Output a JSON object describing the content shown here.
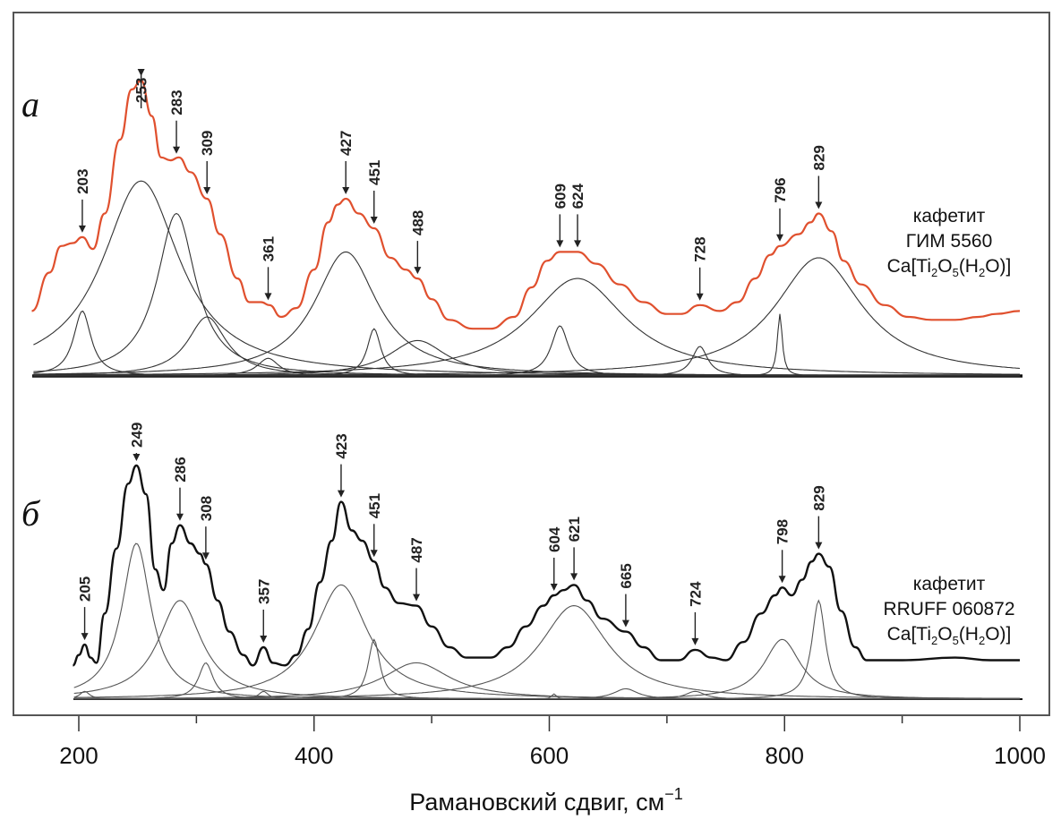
{
  "chart_data": {
    "type": "line",
    "title": "",
    "xlabel": "Рамановский сдвиг, см",
    "xlabel_superscript": "−1",
    "ylabel": "",
    "xlim": [
      160,
      1000
    ],
    "xticks": [
      200,
      400,
      600,
      800,
      1000
    ],
    "xtick_labels": [
      "200",
      "400",
      "600",
      "800",
      "1000"
    ],
    "minor_xticks": [
      300,
      500,
      700,
      900
    ],
    "grid": false,
    "panels": [
      {
        "id": "a",
        "letter": "а",
        "sample_lines": [
          "кафетит",
          "ГИМ 5560"
        ],
        "formula": {
          "pre": "Ca",
          "parts": [
            [
              "[Ti",
              "2",
              "O",
              "5",
              "(H",
              "2",
              "O)]"
            ]
          ]
        },
        "formula_text": "Ca[Ti2O5(H2O)]",
        "spectrum_color": "#e0502e",
        "component_color": "#333333",
        "peak_labels": [
          203,
          253,
          283,
          309,
          361,
          427,
          451,
          488,
          609,
          624,
          728,
          796,
          829
        ],
        "components": [
          {
            "center": 203,
            "height": 0.22,
            "fwhm": 18
          },
          {
            "center": 253,
            "height": 0.66,
            "fwhm": 80
          },
          {
            "center": 283,
            "height": 0.55,
            "fwhm": 40
          },
          {
            "center": 309,
            "height": 0.2,
            "fwhm": 40
          },
          {
            "center": 361,
            "height": 0.06,
            "fwhm": 22
          },
          {
            "center": 427,
            "height": 0.42,
            "fwhm": 65
          },
          {
            "center": 451,
            "height": 0.16,
            "fwhm": 14
          },
          {
            "center": 488,
            "height": 0.12,
            "fwhm": 60
          },
          {
            "center": 609,
            "height": 0.17,
            "fwhm": 18
          },
          {
            "center": 624,
            "height": 0.33,
            "fwhm": 100
          },
          {
            "center": 728,
            "height": 0.1,
            "fwhm": 16
          },
          {
            "center": 796,
            "height": 0.21,
            "fwhm": 5
          },
          {
            "center": 829,
            "height": 0.4,
            "fwhm": 90
          }
        ],
        "spectrum": [
          [
            160,
            0.22
          ],
          [
            175,
            0.35
          ],
          [
            185,
            0.44
          ],
          [
            195,
            0.45
          ],
          [
            203,
            0.47
          ],
          [
            212,
            0.43
          ],
          [
            222,
            0.55
          ],
          [
            235,
            0.8
          ],
          [
            245,
            0.97
          ],
          [
            253,
            1.0
          ],
          [
            262,
            0.88
          ],
          [
            270,
            0.74
          ],
          [
            278,
            0.73
          ],
          [
            285,
            0.74
          ],
          [
            295,
            0.69
          ],
          [
            309,
            0.6
          ],
          [
            320,
            0.48
          ],
          [
            335,
            0.33
          ],
          [
            345,
            0.25
          ],
          [
            355,
            0.25
          ],
          [
            362,
            0.24
          ],
          [
            372,
            0.2
          ],
          [
            385,
            0.23
          ],
          [
            400,
            0.36
          ],
          [
            412,
            0.52
          ],
          [
            420,
            0.58
          ],
          [
            427,
            0.6
          ],
          [
            438,
            0.55
          ],
          [
            451,
            0.5
          ],
          [
            465,
            0.4
          ],
          [
            478,
            0.36
          ],
          [
            488,
            0.33
          ],
          [
            500,
            0.26
          ],
          [
            515,
            0.19
          ],
          [
            535,
            0.16
          ],
          [
            550,
            0.16
          ],
          [
            570,
            0.2
          ],
          [
            585,
            0.3
          ],
          [
            598,
            0.39
          ],
          [
            609,
            0.42
          ],
          [
            624,
            0.42
          ],
          [
            640,
            0.38
          ],
          [
            660,
            0.31
          ],
          [
            680,
            0.25
          ],
          [
            700,
            0.21
          ],
          [
            712,
            0.21
          ],
          [
            728,
            0.24
          ],
          [
            745,
            0.22
          ],
          [
            760,
            0.25
          ],
          [
            775,
            0.33
          ],
          [
            788,
            0.41
          ],
          [
            796,
            0.44
          ],
          [
            812,
            0.48
          ],
          [
            822,
            0.52
          ],
          [
            829,
            0.55
          ],
          [
            840,
            0.49
          ],
          [
            850,
            0.39
          ],
          [
            865,
            0.31
          ],
          [
            885,
            0.24
          ],
          [
            905,
            0.2
          ],
          [
            925,
            0.19
          ],
          [
            945,
            0.19
          ],
          [
            965,
            0.2
          ],
          [
            980,
            0.21
          ],
          [
            1000,
            0.22
          ]
        ]
      },
      {
        "id": "b",
        "letter": "б",
        "sample_lines": [
          "кафетит",
          "RRUFF 060872"
        ],
        "formula_text": "Ca[Ti2O5(H2O)]",
        "spectrum_color": "#111111",
        "component_color": "#555555",
        "peak_labels": [
          205,
          249,
          286,
          308,
          357,
          423,
          451,
          487,
          604,
          621,
          665,
          724,
          798,
          829
        ],
        "components": [
          {
            "center": 205,
            "height": 0.03,
            "fwhm": 10
          },
          {
            "center": 249,
            "height": 0.6,
            "fwhm": 30
          },
          {
            "center": 286,
            "height": 0.38,
            "fwhm": 45
          },
          {
            "center": 308,
            "height": 0.14,
            "fwhm": 15
          },
          {
            "center": 357,
            "height": 0.03,
            "fwhm": 10
          },
          {
            "center": 423,
            "height": 0.44,
            "fwhm": 55
          },
          {
            "center": 451,
            "height": 0.23,
            "fwhm": 12
          },
          {
            "center": 487,
            "height": 0.14,
            "fwhm": 70
          },
          {
            "center": 604,
            "height": 0.02,
            "fwhm": 5
          },
          {
            "center": 621,
            "height": 0.36,
            "fwhm": 70
          },
          {
            "center": 665,
            "height": 0.04,
            "fwhm": 25
          },
          {
            "center": 724,
            "height": 0.03,
            "fwhm": 20
          },
          {
            "center": 798,
            "height": 0.23,
            "fwhm": 38
          },
          {
            "center": 829,
            "height": 0.38,
            "fwhm": 14
          }
        ],
        "spectrum": [
          [
            195,
            0.13
          ],
          [
            200,
            0.17
          ],
          [
            205,
            0.21
          ],
          [
            210,
            0.16
          ],
          [
            215,
            0.14
          ],
          [
            222,
            0.33
          ],
          [
            232,
            0.58
          ],
          [
            242,
            0.83
          ],
          [
            249,
            0.9
          ],
          [
            257,
            0.79
          ],
          [
            265,
            0.5
          ],
          [
            272,
            0.42
          ],
          [
            279,
            0.6
          ],
          [
            286,
            0.67
          ],
          [
            295,
            0.6
          ],
          [
            303,
            0.56
          ],
          [
            308,
            0.52
          ],
          [
            318,
            0.38
          ],
          [
            328,
            0.26
          ],
          [
            340,
            0.17
          ],
          [
            348,
            0.13
          ],
          [
            357,
            0.2
          ],
          [
            365,
            0.14
          ],
          [
            375,
            0.13
          ],
          [
            385,
            0.17
          ],
          [
            395,
            0.27
          ],
          [
            405,
            0.45
          ],
          [
            415,
            0.61
          ],
          [
            423,
            0.76
          ],
          [
            432,
            0.65
          ],
          [
            441,
            0.61
          ],
          [
            451,
            0.53
          ],
          [
            460,
            0.43
          ],
          [
            472,
            0.37
          ],
          [
            487,
            0.36
          ],
          [
            500,
            0.28
          ],
          [
            515,
            0.2
          ],
          [
            530,
            0.16
          ],
          [
            550,
            0.16
          ],
          [
            565,
            0.2
          ],
          [
            580,
            0.28
          ],
          [
            595,
            0.36
          ],
          [
            604,
            0.4
          ],
          [
            612,
            0.42
          ],
          [
            621,
            0.44
          ],
          [
            632,
            0.38
          ],
          [
            645,
            0.31
          ],
          [
            665,
            0.26
          ],
          [
            680,
            0.2
          ],
          [
            695,
            0.15
          ],
          [
            710,
            0.15
          ],
          [
            724,
            0.19
          ],
          [
            738,
            0.16
          ],
          [
            750,
            0.15
          ],
          [
            765,
            0.22
          ],
          [
            780,
            0.33
          ],
          [
            792,
            0.4
          ],
          [
            798,
            0.43
          ],
          [
            806,
            0.4
          ],
          [
            815,
            0.46
          ],
          [
            823,
            0.53
          ],
          [
            829,
            0.56
          ],
          [
            838,
            0.51
          ],
          [
            848,
            0.34
          ],
          [
            860,
            0.2
          ],
          [
            870,
            0.15
          ],
          [
            900,
            0.15
          ],
          [
            945,
            0.16
          ],
          [
            975,
            0.15
          ],
          [
            1000,
            0.15
          ]
        ]
      }
    ]
  }
}
